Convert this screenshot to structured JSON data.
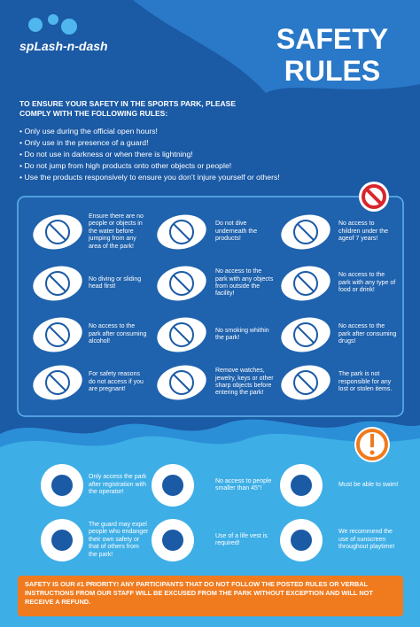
{
  "header": {
    "logo": "spLash-n-dash",
    "title_line1": "SAFETY",
    "title_line2": "RULES"
  },
  "intro": "TO ENSURE YOUR SAFETY IN THE SPORTS PARK, PLEASE COMPLY WITH THE FOLLOWING RULES:",
  "bullets": [
    "Only use during the official open hours!",
    "Only use in the presence of a guard!",
    "Do not use in darkness or when there is lightning!",
    "Do not jump from high products onto other objects or people!",
    "Use the products responsively to ensure you don’t injure yourself or others!"
  ],
  "prohibitions": [
    "Ensure there are no people or objects in the water before jumping from any area of the park!",
    "Do not dive underneath the products!",
    "No access to children under the ageof 7 years!",
    "No diving or sliding head first!",
    "No access to the park with any objects from outside the facility!",
    "No access to the park with any type of food or drink!",
    "No access to the park after consuming alcohol!",
    "No smoking whithin the park!",
    "No access to the park after consuming drugs!",
    "For safety reasons do not access if you are pregnant!",
    "Remove watches, jewelry, keys or other sharp objects before entering the park!",
    "The park is not responsible for any lost or stolen items."
  ],
  "requirements": [
    "Only access the park after registration with the operator!",
    "No access to people smaller than 45\"!",
    "Must be able to swim!",
    "The guard may expel people who endanger their own safety or that of others from the park!",
    "Use of a life vest is required!",
    "We recommend the use of sunscreen throughout playtime!"
  ],
  "footer": "SAFETY IS OUR #1 PRIORITY!  ANY PARTICIPANTS THAT DO NOT FOLLOW THE POSTED RULES OR VERBAL INSTRUCTIONS FROM OUR STAFF WILL BE EXCUSED FROM THE PARK WITHOUT EXCEPTION AND WILL NOT RECEIVE A REFUND."
}
